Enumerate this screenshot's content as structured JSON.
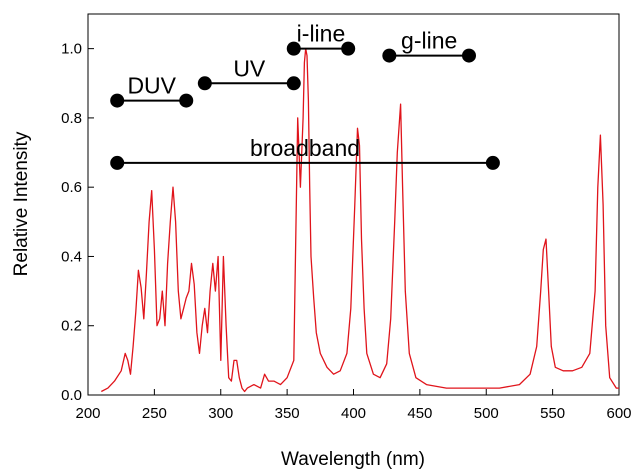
{
  "chart_data": {
    "type": "line",
    "title": "",
    "xlabel": "Wavelength (nm)",
    "ylabel": "Relative Intensity",
    "xlim": [
      200,
      600
    ],
    "ylim": [
      0,
      1.1
    ],
    "x_ticks": [
      200,
      250,
      300,
      350,
      400,
      450,
      500,
      550,
      600
    ],
    "y_ticks": [
      0.0,
      0.2,
      0.4,
      0.6,
      0.8,
      1.0
    ],
    "x_tick_labels": [
      "200",
      "250",
      "300",
      "350",
      "400",
      "450",
      "500",
      "550",
      "600"
    ],
    "y_tick_labels": [
      "0.0",
      "0.2",
      "0.4",
      "0.6",
      "0.8",
      "1.0"
    ],
    "grid": false,
    "legend": "none",
    "series": [
      {
        "color": "#e0141b",
        "x": [
          210,
          215,
          220,
          225,
          228,
          230,
          232,
          234,
          236,
          238,
          240,
          242,
          244,
          246,
          248,
          250,
          252,
          254,
          256,
          258,
          260,
          262,
          264,
          266,
          268,
          270,
          272,
          274,
          276,
          278,
          280,
          282,
          284,
          286,
          288,
          290,
          292,
          294,
          296,
          298,
          300,
          302,
          304,
          306,
          308,
          310,
          312,
          314,
          316,
          318,
          320,
          325,
          330,
          333,
          336,
          340,
          345,
          350,
          355,
          358,
          360,
          362,
          363,
          364,
          365,
          366,
          367,
          368,
          370,
          372,
          375,
          380,
          385,
          390,
          395,
          398,
          401,
          403,
          404.5,
          406,
          408,
          410,
          415,
          420,
          425,
          428,
          431,
          433,
          435.5,
          437,
          439,
          442,
          447,
          455,
          470,
          490,
          510,
          525,
          533,
          538,
          541,
          543,
          545,
          547,
          549,
          552,
          558,
          565,
          572,
          578,
          582,
          584,
          586,
          588,
          590,
          593,
          598,
          600
        ],
        "y": [
          0.01,
          0.02,
          0.04,
          0.07,
          0.12,
          0.1,
          0.06,
          0.14,
          0.24,
          0.36,
          0.31,
          0.22,
          0.35,
          0.5,
          0.59,
          0.42,
          0.2,
          0.22,
          0.3,
          0.2,
          0.38,
          0.5,
          0.6,
          0.5,
          0.3,
          0.22,
          0.25,
          0.28,
          0.3,
          0.38,
          0.32,
          0.18,
          0.12,
          0.2,
          0.25,
          0.18,
          0.3,
          0.38,
          0.3,
          0.4,
          0.1,
          0.4,
          0.2,
          0.05,
          0.04,
          0.1,
          0.1,
          0.05,
          0.02,
          0.01,
          0.02,
          0.03,
          0.02,
          0.06,
          0.04,
          0.04,
          0.03,
          0.05,
          0.1,
          0.8,
          0.6,
          0.8,
          0.96,
          1.0,
          0.98,
          0.85,
          0.6,
          0.4,
          0.28,
          0.18,
          0.12,
          0.08,
          0.06,
          0.07,
          0.12,
          0.25,
          0.55,
          0.77,
          0.72,
          0.45,
          0.25,
          0.12,
          0.06,
          0.05,
          0.09,
          0.22,
          0.5,
          0.7,
          0.84,
          0.6,
          0.3,
          0.12,
          0.05,
          0.03,
          0.02,
          0.02,
          0.02,
          0.03,
          0.06,
          0.14,
          0.3,
          0.42,
          0.45,
          0.3,
          0.14,
          0.08,
          0.07,
          0.07,
          0.08,
          0.12,
          0.3,
          0.6,
          0.75,
          0.55,
          0.2,
          0.05,
          0.02,
          0.02
        ]
      }
    ],
    "ranges": [
      {
        "label": "DUV",
        "x1": 222,
        "x2": 274,
        "y": 0.85
      },
      {
        "label": "UV",
        "x1": 288,
        "x2": 355,
        "y": 0.9
      },
      {
        "label": "i-line",
        "x1": 355,
        "x2": 396,
        "y": 1.0
      },
      {
        "label": "g-line",
        "x1": 427,
        "x2": 487,
        "y": 0.98
      },
      {
        "label": "broadband",
        "x1": 222,
        "x2": 505,
        "y": 0.67
      }
    ]
  }
}
